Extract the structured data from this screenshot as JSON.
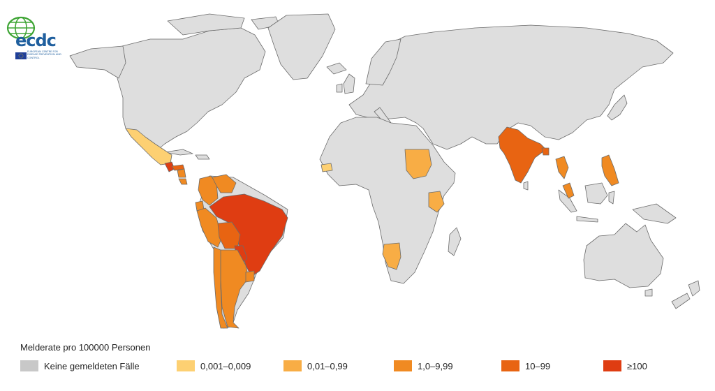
{
  "logo": {
    "brand": "ecdc",
    "subtitle": "EUROPEAN CENTRE FOR DISEASE PREVENTION AND CONTROL"
  },
  "legend": {
    "title": "Melderate pro 100000 Personen",
    "items": [
      {
        "label": "Keine gemeldeten Fälle",
        "color": "#c8c8c8"
      },
      {
        "label": "0,001–0,009",
        "color": "#fdd072"
      },
      {
        "label": "0,01–0,99",
        "color": "#f8ad45"
      },
      {
        "label": "1,0–9,99",
        "color": "#f08a22"
      },
      {
        "label": "10–99",
        "color": "#e86412"
      },
      {
        "label": "≥100",
        "color": "#df3d12"
      }
    ]
  },
  "colors": {
    "no_data": "#dedede",
    "ocean": "#ffffff",
    "border": "#6b6b6b"
  },
  "regions": [
    {
      "name": "Mexico",
      "class": "0,001–0,009"
    },
    {
      "name": "Guatemala",
      "class": "≥100"
    },
    {
      "name": "Honduras",
      "class": "10–99"
    },
    {
      "name": "Nicaragua",
      "class": "1,0–9,99"
    },
    {
      "name": "Costa Rica",
      "class": "1,0–9,99"
    },
    {
      "name": "Colombia",
      "class": "1,0–9,99"
    },
    {
      "name": "Venezuela",
      "class": "1,0–9,99"
    },
    {
      "name": "Ecuador",
      "class": "1,0–9,99"
    },
    {
      "name": "Peru",
      "class": "1,0–9,99"
    },
    {
      "name": "Brazil",
      "class": "≥100"
    },
    {
      "name": "Bolivia",
      "class": "10–99"
    },
    {
      "name": "Paraguay",
      "class": "≥100"
    },
    {
      "name": "Argentina",
      "class": "1,0–9,99"
    },
    {
      "name": "Chile",
      "class": "1,0–9,99"
    },
    {
      "name": "Uruguay",
      "class": "1,0–9,99"
    },
    {
      "name": "Senegal",
      "class": "0,001–0,009"
    },
    {
      "name": "Sudan",
      "class": "0,01–0,99"
    },
    {
      "name": "Kenya",
      "class": "0,01–0,99"
    },
    {
      "name": "Namibia",
      "class": "0,01–0,99"
    },
    {
      "name": "India",
      "class": "10–99"
    },
    {
      "name": "Bangladesh",
      "class": "10–99"
    },
    {
      "name": "Thailand",
      "class": "1,0–9,99"
    },
    {
      "name": "Malaysia",
      "class": "1,0–9,99"
    },
    {
      "name": "Philippines",
      "class": "1,0–9,99"
    }
  ]
}
